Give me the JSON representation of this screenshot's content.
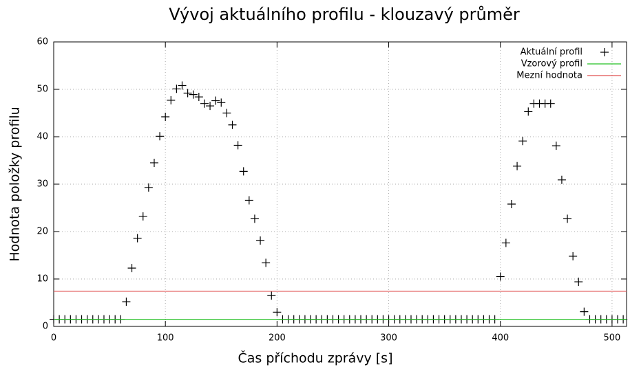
{
  "chart_data": {
    "type": "scatter",
    "title": "Vývoj aktuálního profilu - klouzavý průměr",
    "xlabel": "Čas příchodu zprávy [s]",
    "ylabel": "Hodnota položky profilu",
    "xlim": [
      0,
      513
    ],
    "ylim": [
      0,
      60
    ],
    "xticks": [
      0,
      100,
      200,
      300,
      400,
      500
    ],
    "yticks": [
      0,
      10,
      20,
      30,
      40,
      50,
      60
    ],
    "grid": true,
    "legend": "top right",
    "series": [
      {
        "name": "Aktuální profil",
        "color": "#000000",
        "style": "points",
        "x": [
          0,
          5,
          10,
          15,
          20,
          25,
          30,
          35,
          40,
          45,
          50,
          55,
          60,
          65,
          70,
          75,
          80,
          85,
          90,
          95,
          100,
          105,
          110,
          115,
          120,
          125,
          130,
          135,
          140,
          145,
          150,
          155,
          160,
          165,
          170,
          175,
          180,
          185,
          190,
          195,
          200,
          205,
          210,
          215,
          220,
          225,
          230,
          235,
          240,
          245,
          250,
          255,
          260,
          265,
          270,
          275,
          280,
          285,
          290,
          295,
          300,
          305,
          310,
          315,
          320,
          325,
          330,
          335,
          340,
          345,
          350,
          355,
          360,
          365,
          370,
          375,
          380,
          385,
          390,
          395,
          400,
          405,
          410,
          415,
          420,
          425,
          430,
          435,
          440,
          445,
          450,
          455,
          460,
          465,
          470,
          475,
          480,
          485,
          490,
          495,
          500,
          505,
          510
        ],
        "values": [
          1.5,
          1.5,
          1.5,
          1.5,
          1.5,
          1.5,
          1.5,
          1.5,
          1.5,
          1.5,
          1.5,
          1.5,
          1.5,
          5.2,
          12.3,
          18.6,
          23.2,
          29.3,
          34.5,
          40.1,
          44.2,
          47.7,
          50.1,
          50.8,
          49.2,
          48.9,
          48.4,
          47.0,
          46.5,
          47.6,
          47.2,
          45.0,
          42.5,
          38.2,
          32.7,
          26.6,
          22.7,
          18.1,
          13.4,
          6.5,
          3.0,
          1.5,
          1.5,
          1.5,
          1.5,
          1.5,
          1.5,
          1.5,
          1.5,
          1.5,
          1.5,
          1.5,
          1.5,
          1.5,
          1.5,
          1.5,
          1.5,
          1.5,
          1.5,
          1.5,
          1.5,
          1.5,
          1.5,
          1.5,
          1.5,
          1.5,
          1.5,
          1.5,
          1.5,
          1.5,
          1.5,
          1.5,
          1.5,
          1.5,
          1.5,
          1.5,
          1.5,
          1.5,
          1.5,
          1.5,
          10.5,
          17.6,
          25.8,
          33.8,
          39.1,
          45.3,
          47.0,
          47.0,
          47.0,
          47.0,
          38.1,
          30.9,
          22.7,
          14.8,
          9.4,
          3.1,
          1.5,
          1.5,
          1.5,
          1.5,
          1.5,
          1.5,
          1.5
        ]
      },
      {
        "name": "Vzorový profil",
        "color": "#22c022",
        "style": "line",
        "x": [
          0,
          513
        ],
        "values": [
          1.5,
          1.5
        ]
      },
      {
        "name": "Mezní hodnota",
        "color": "#e05050",
        "style": "line",
        "x": [
          0,
          513
        ],
        "values": [
          7.4,
          7.4
        ]
      }
    ]
  }
}
